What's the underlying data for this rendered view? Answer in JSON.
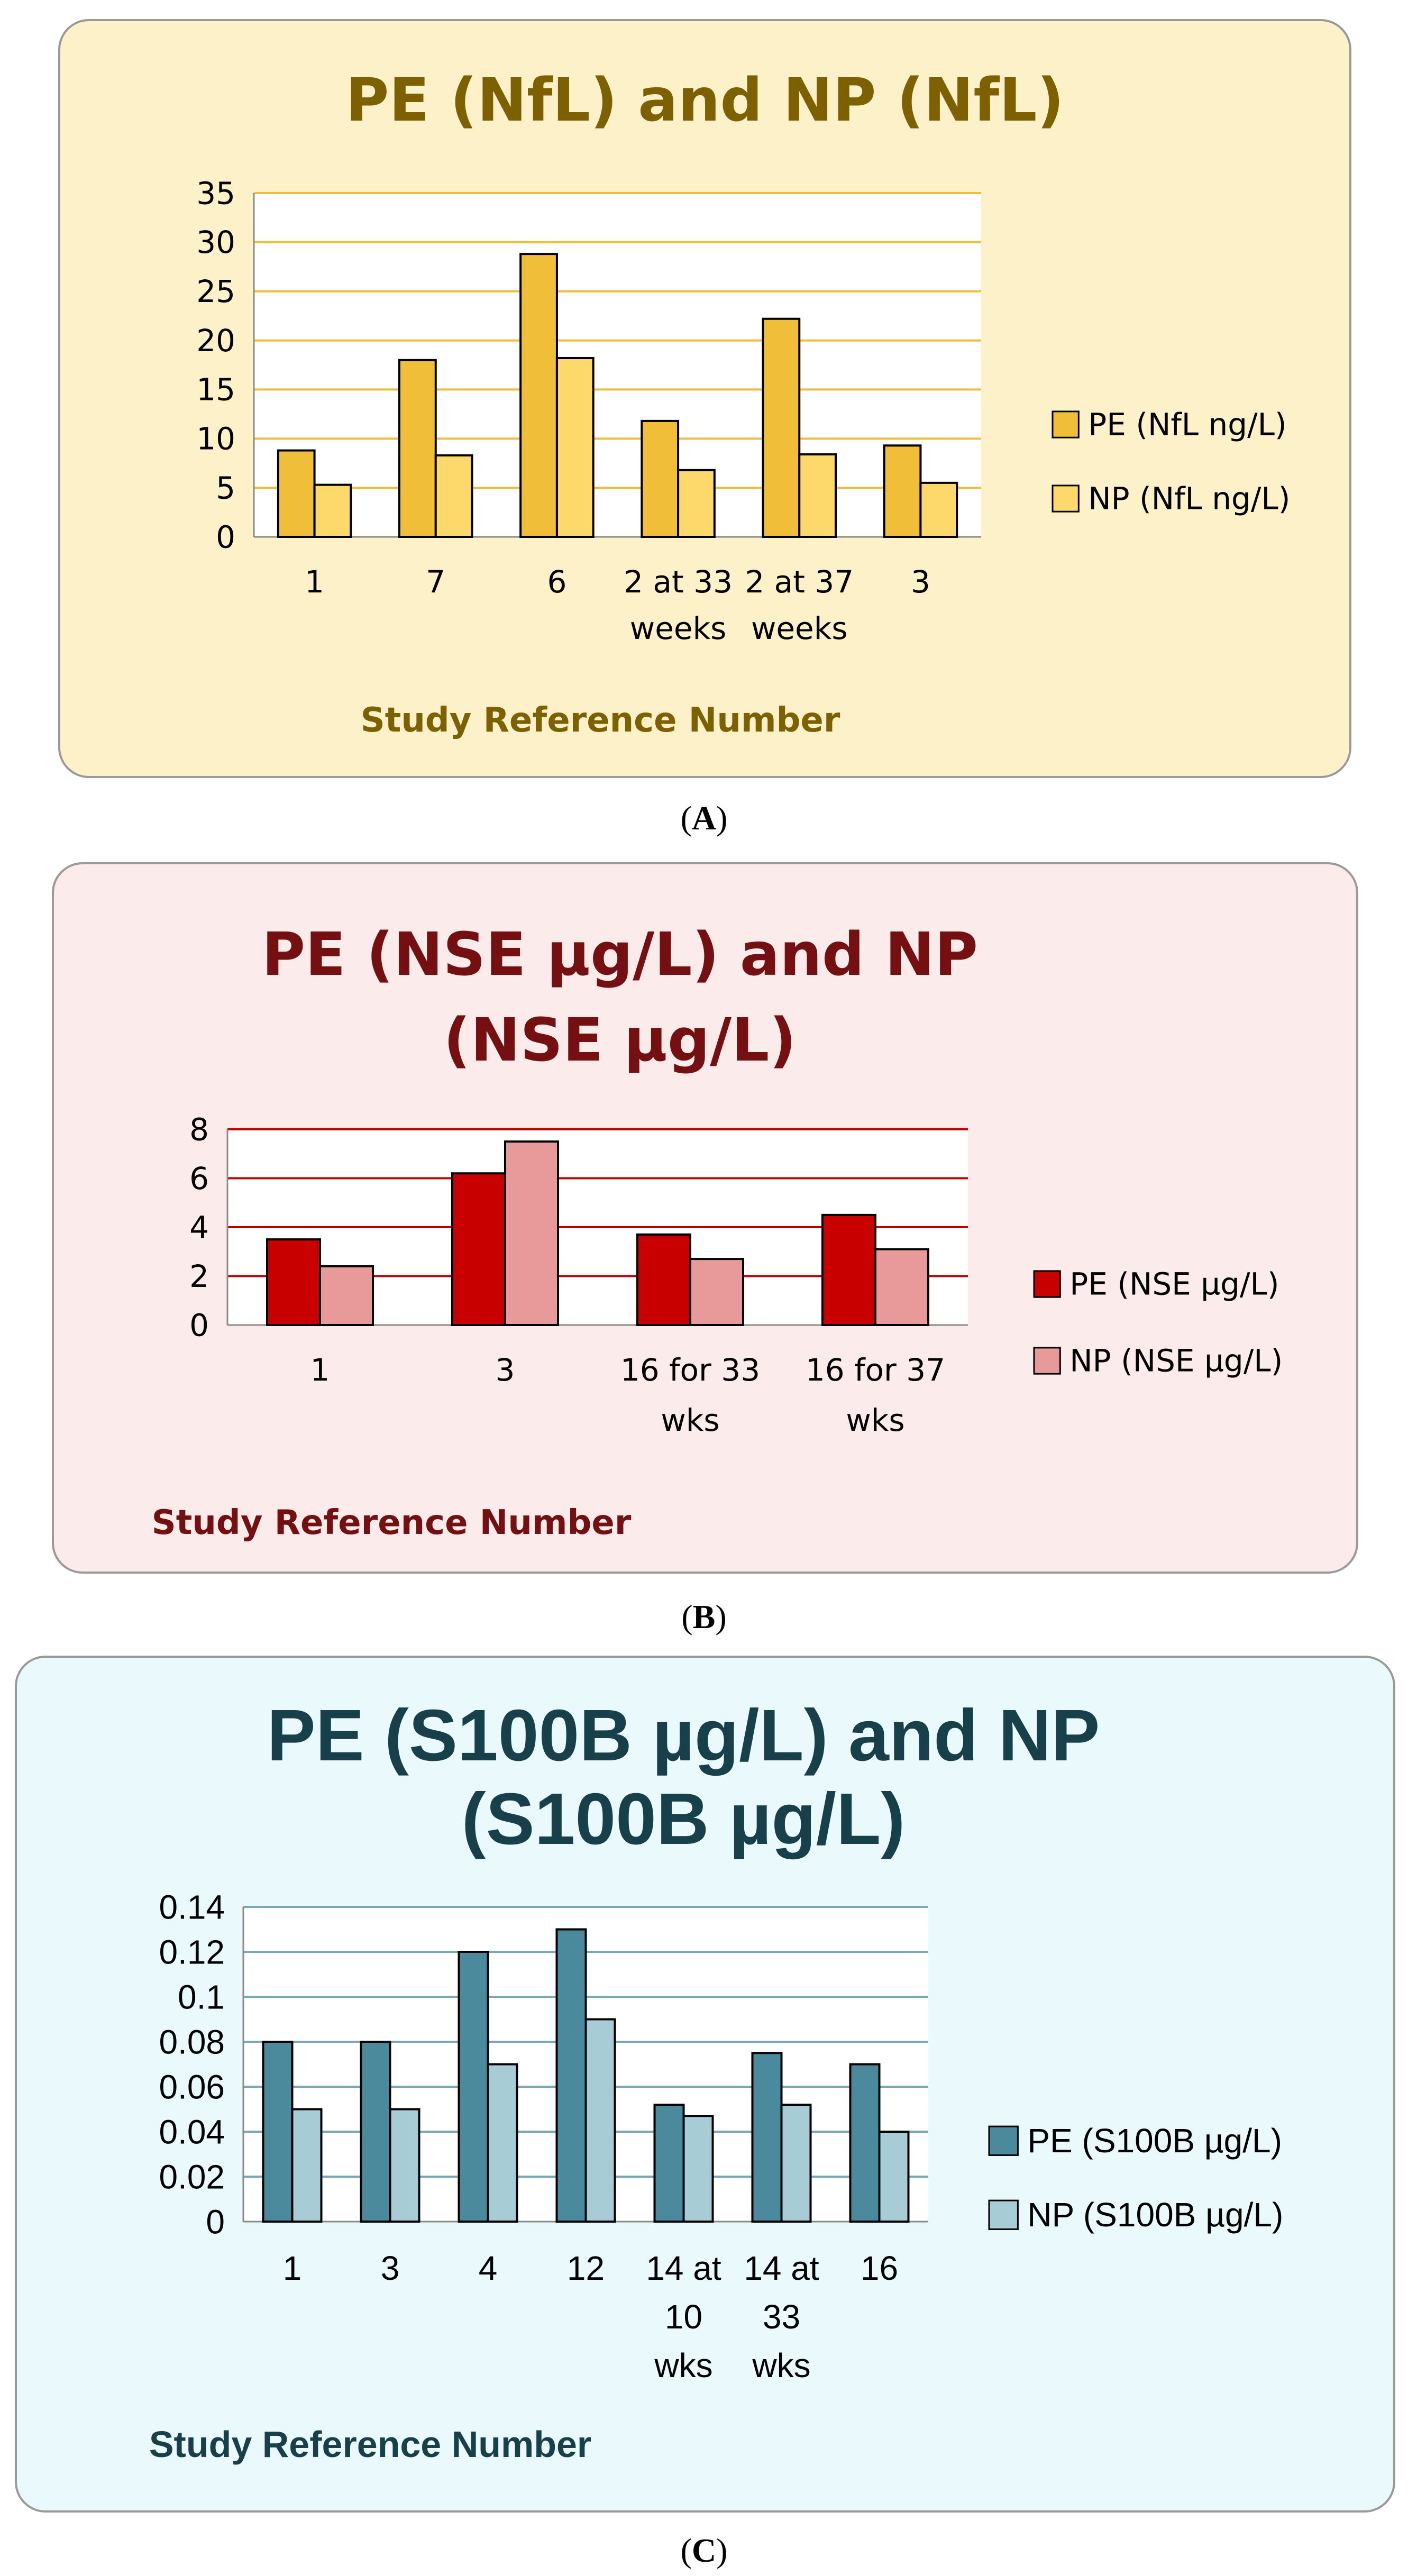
{
  "panels": [
    {
      "caption": "A",
      "chart_data": {
        "type": "bar",
        "title": "PE (NfL) and NP (NfL)",
        "xlabel": "Study Reference Number",
        "ylabel": "",
        "categories": [
          [
            "1"
          ],
          [
            "7"
          ],
          [
            "6"
          ],
          [
            "2 at 33",
            "weeks"
          ],
          [
            "2 at 37",
            "weeks"
          ],
          [
            "3"
          ]
        ],
        "series": [
          {
            "name": "PE (NfL ng/L)",
            "values": [
              8.8,
              18.0,
              28.8,
              11.8,
              22.2,
              9.3
            ]
          },
          {
            "name": "NP (NfL ng/L)",
            "values": [
              5.3,
              8.3,
              18.2,
              6.8,
              8.4,
              5.5
            ]
          }
        ],
        "yticks": [
          "0",
          "5",
          "10",
          "15",
          "20",
          "25",
          "30",
          "35"
        ],
        "ylim": [
          0,
          35
        ],
        "grid": true,
        "legend_position": "right",
        "colors": {
          "series": [
            "#f0be38",
            "#fcd96a"
          ],
          "grid": "#f0be38",
          "axis_text": "#000000",
          "title": "#7d6000",
          "xlabel": "#7d6000",
          "background": "#fcf1c8"
        }
      }
    },
    {
      "caption": "B",
      "chart_data": {
        "type": "bar",
        "title": "PE (NSE µg/L) and NP (NSE µg/L)",
        "xlabel": "Study Reference Number",
        "ylabel": "",
        "categories": [
          [
            "1"
          ],
          [
            "3"
          ],
          [
            "16 for 33",
            "wks"
          ],
          [
            "16 for 37",
            "wks"
          ]
        ],
        "series": [
          {
            "name": "PE (NSE µg/L)",
            "values": [
              3.5,
              6.2,
              3.7,
              4.5
            ]
          },
          {
            "name": "NP (NSE  µg/L)",
            "values": [
              2.4,
              7.5,
              2.7,
              3.1
            ]
          }
        ],
        "yticks": [
          "0",
          "2",
          "4",
          "6",
          "8"
        ],
        "ylim": [
          0,
          8
        ],
        "grid": true,
        "legend_position": "right",
        "colors": {
          "series": [
            "#c80000",
            "#e89a9a"
          ],
          "grid": "#c00000",
          "axis_text": "#000000",
          "title": "#741012",
          "xlabel": "#741012",
          "background": "#fcebeb"
        }
      }
    },
    {
      "caption": "C",
      "chart_data": {
        "type": "bar",
        "title": "PE (S100B µg/L) and NP (S100B µg/L)",
        "xlabel": "Study Reference Number",
        "ylabel": "",
        "categories": [
          [
            "1"
          ],
          [
            "3"
          ],
          [
            "4"
          ],
          [
            "12"
          ],
          [
            "14 at",
            "10",
            "wks"
          ],
          [
            "14 at",
            "33",
            "wks"
          ],
          [
            "16"
          ]
        ],
        "series": [
          {
            "name": "PE (S100B  µg/L)",
            "values": [
              0.08,
              0.08,
              0.12,
              0.13,
              0.052,
              0.075,
              0.07
            ]
          },
          {
            "name": "NP (S100B  µg/L)",
            "values": [
              0.05,
              0.05,
              0.07,
              0.09,
              0.047,
              0.052,
              0.04
            ]
          }
        ],
        "yticks": [
          "0",
          "0.02",
          "0.04",
          "0.06",
          "0.08",
          "0.1",
          "0.12",
          "0.14"
        ],
        "ylim": [
          0,
          0.14
        ],
        "grid": true,
        "legend_position": "right",
        "colors": {
          "series": [
            "#4a8a9c",
            "#a8ccd6"
          ],
          "grid": "#7aa8b4",
          "axis_text": "#000000",
          "title": "#17404a",
          "xlabel": "#17404a",
          "background": "#eaf9fb"
        }
      }
    }
  ]
}
